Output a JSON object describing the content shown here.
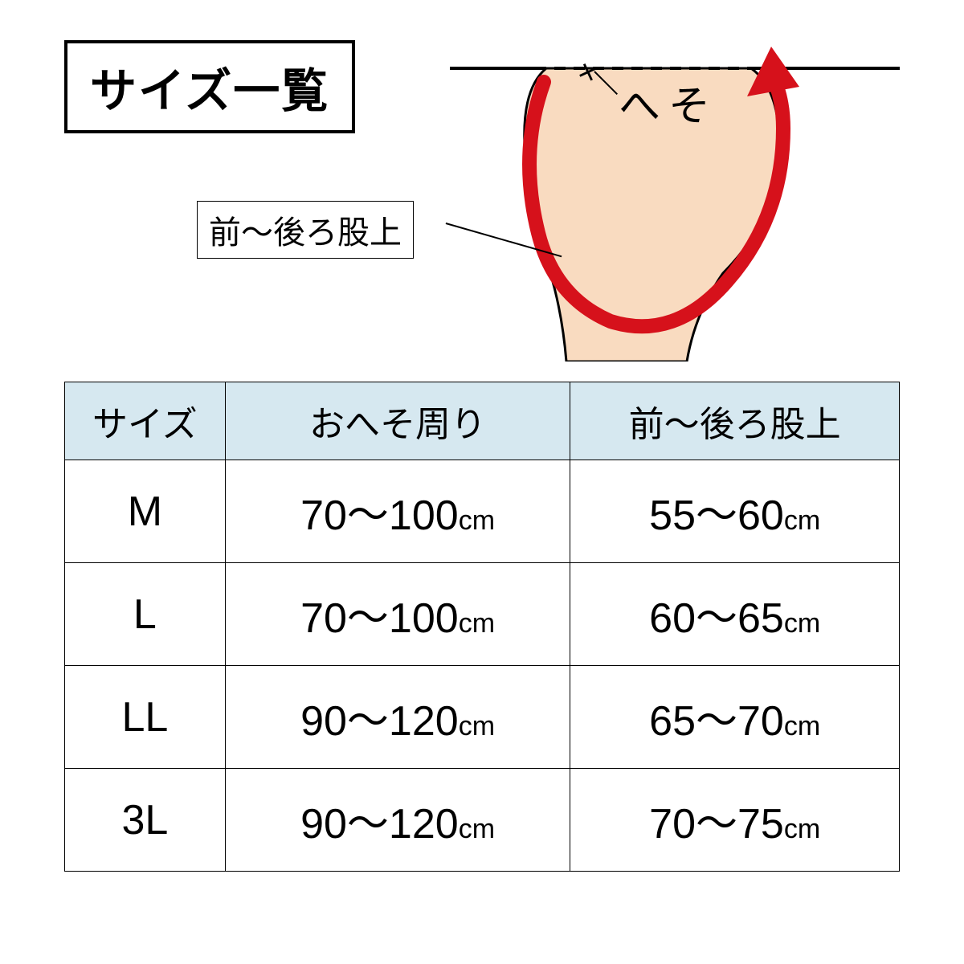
{
  "title": "サイズ一覧",
  "diagram": {
    "navel_label": "へそ",
    "callout_label": "前〜後ろ股上",
    "body_fill": "#f9dbc0",
    "body_stroke": "#000000",
    "arrow_color": "#d6111b",
    "dash_color": "#000000"
  },
  "table": {
    "header_bg": "#d6e8f0",
    "border_color": "#000000",
    "columns": [
      "サイズ",
      "おへそ周り",
      "前〜後ろ股上"
    ],
    "rows": [
      {
        "size": "M",
        "navel": "70〜100",
        "rise": "55〜60"
      },
      {
        "size": "L",
        "navel": "70〜100",
        "rise": "60〜65"
      },
      {
        "size": "LL",
        "navel": "90〜120",
        "rise": "65〜70"
      },
      {
        "size": "3L",
        "navel": "90〜120",
        "rise": "70〜75"
      }
    ],
    "unit": "cm"
  }
}
